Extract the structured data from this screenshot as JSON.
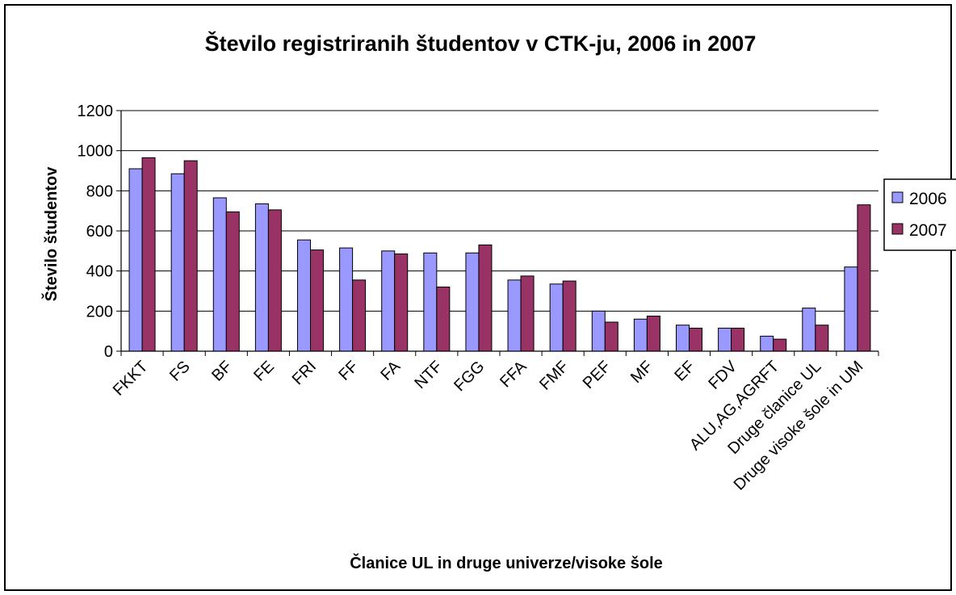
{
  "chart_data": {
    "type": "bar",
    "title": "Število registriranih študentov v CTK-ju, 2006 in 2007",
    "xlabel": "Članice UL in druge univerze/visoke šole",
    "ylabel": "Število študentov",
    "ylim": [
      0,
      1200
    ],
    "yticks": [
      0,
      200,
      400,
      600,
      800,
      1000,
      1200
    ],
    "grid": true,
    "legend_position": "right",
    "categories": [
      "FKKT",
      "FS",
      "BF",
      "FE",
      "FRI",
      "FF",
      "FA",
      "NTF",
      "FGG",
      "FFA",
      "FMF",
      "PEF",
      "MF",
      "EF",
      "FDV",
      "ALU,AG,AGRFT",
      "Druge članice UL",
      "Druge visoke šole in UM"
    ],
    "series": [
      {
        "name": "2006",
        "color": "#9999ff",
        "values": [
          910,
          885,
          765,
          735,
          555,
          515,
          500,
          490,
          490,
          355,
          335,
          200,
          160,
          130,
          115,
          75,
          215,
          420
        ]
      },
      {
        "name": "2007",
        "color": "#993366",
        "values": [
          965,
          950,
          695,
          705,
          505,
          355,
          485,
          320,
          530,
          375,
          350,
          145,
          175,
          115,
          115,
          60,
          130,
          730
        ]
      }
    ]
  }
}
